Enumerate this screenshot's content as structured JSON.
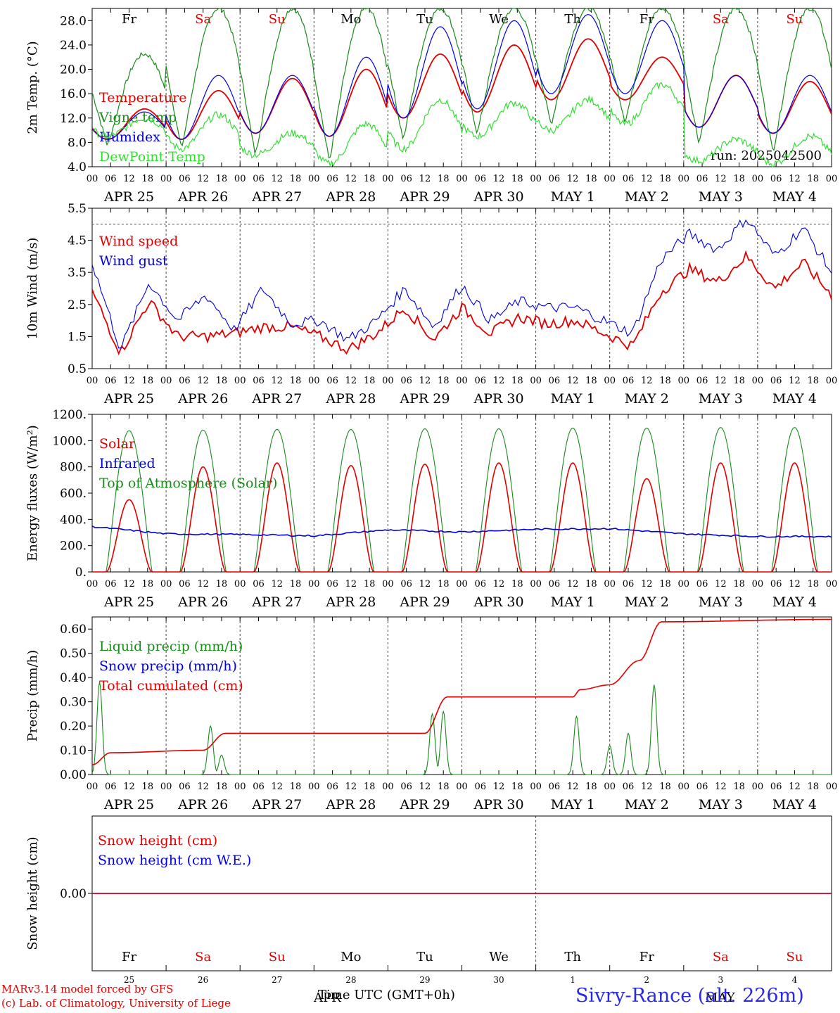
{
  "chart_data": {
    "type": "line",
    "days": [
      "Fr",
      "Sa",
      "Su",
      "Mo",
      "Tu",
      "We",
      "Th",
      "Fr",
      "Sa",
      "Su"
    ],
    "weekend_days": [
      "Sa",
      "Su"
    ],
    "date_labels": [
      "APR 25",
      "APR 26",
      "APR 27",
      "APR 28",
      "APR 29",
      "APR 30",
      "MAY  1",
      "MAY  2",
      "MAY  3",
      "MAY  4"
    ],
    "hour_ticks": [
      "00",
      "06",
      "12",
      "18"
    ],
    "day_numbers": [
      "25",
      "26",
      "27",
      "28",
      "29",
      "30",
      "1",
      "2",
      "3",
      "4"
    ],
    "month_labels": [
      "APR",
      "MAY"
    ],
    "panels": [
      {
        "ylabel": "2m Temp. (°C)",
        "ylim": [
          4,
          30
        ],
        "yticks": [
          "4.0",
          "8.0",
          "12.0",
          "16.0",
          "20.0",
          "24.0",
          "28.0"
        ],
        "annotation": "run: 2025042500",
        "series": [
          {
            "name": "Temperature",
            "color": "#e00000",
            "min": [
              8.5,
              8.5,
              9.5,
              9.0,
              12.0,
              13.0,
              15.0,
              15.0,
              10.5,
              9.5
            ],
            "max": [
              13.5,
              16.5,
              18.5,
              20.0,
              22.5,
              24.0,
              25.0,
              22.0,
              19.0,
              18.0
            ]
          },
          {
            "name": "Vigne temp",
            "color": "#1a8a1a",
            "min": [
              7.5,
              7.0,
              6.0,
              5.0,
              8.5,
              9.5,
              11.0,
              11.5,
              8.0,
              6.5
            ],
            "max": [
              22.5,
              30.0,
              30.0,
              30.0,
              30.0,
              30.0,
              30.0,
              30.0,
              30.0,
              30.0
            ]
          },
          {
            "name": "Humidex",
            "color": "#0000e0",
            "min": [
              8.5,
              8.5,
              9.5,
              9.0,
              12.0,
              13.5,
              16.0,
              16.0,
              10.5,
              9.5
            ],
            "max": [
              13.0,
              19.0,
              19.0,
              22.0,
              27.0,
              28.0,
              29.0,
              28.0,
              19.0,
              19.0
            ]
          },
          {
            "name": "DewPoint Temp",
            "color": "#33dd33",
            "min": [
              9.0,
              7.0,
              6.0,
              4.5,
              7.0,
              9.0,
              10.0,
              11.0,
              5.0,
              4.5
            ],
            "max": [
              12.0,
              12.5,
              9.5,
              11.0,
              15.0,
              14.5,
              15.0,
              17.5,
              8.5,
              9.0
            ]
          }
        ]
      },
      {
        "ylabel": "10m Wind (m/s)",
        "ylim": [
          0.5,
          5.5
        ],
        "yticks": [
          "0.5",
          "1.5",
          "2.5",
          "3.5",
          "4.5",
          "5.5"
        ],
        "reference_line": 5.0,
        "series": [
          {
            "name": "Wind speed",
            "color": "#e00000",
            "daily": [
              2.9,
              1.0,
              2.6,
              1.5,
              1.5,
              1.6,
              1.8,
              1.8,
              1.5,
              1.1,
              1.6,
              2.4,
              1.4,
              2.4,
              1.6,
              2.1,
              1.9,
              2.0,
              1.6,
              1.2,
              2.9,
              3.6,
              3.2,
              4.0,
              3.0,
              3.8,
              2.8
            ]
          },
          {
            "name": "Wind gust",
            "color": "#0000e0",
            "daily": [
              3.8,
              1.1,
              3.2,
              2.0,
              2.8,
              1.7,
              3.0,
              1.9,
              2.0,
              1.4,
              2.0,
              3.0,
              1.8,
              3.1,
              2.0,
              2.6,
              2.4,
              2.4,
              2.0,
              1.6,
              3.9,
              4.7,
              4.2,
              5.2,
              4.0,
              4.9,
              3.5
            ]
          }
        ]
      },
      {
        "ylabel": "Energy fluxes (W/m²)",
        "ylim": [
          0,
          1200
        ],
        "yticks": [
          "0.",
          "200.",
          "400.",
          "600.",
          "800.",
          "1000.",
          "1200."
        ],
        "series": [
          {
            "name": "Solar",
            "color": "#e00000",
            "daily_peak": [
              550,
              800,
              830,
              810,
              820,
              830,
              830,
              710,
              830,
              830
            ]
          },
          {
            "name": "Infrared",
            "color": "#0000e0",
            "level": [
              345,
              290,
              285,
              275,
              320,
              305,
              325,
              330,
              290,
              270
            ]
          },
          {
            "name": "Top of Atmosphere (Solar)",
            "color": "#1a8a1a",
            "daily_peak": [
              1075,
              1080,
              1085,
              1085,
              1090,
              1090,
              1095,
              1095,
              1100,
              1100
            ]
          }
        ]
      },
      {
        "ylabel": "Precip (mm/h)",
        "ylim": [
          0,
          0.65
        ],
        "yticks": [
          "0.00",
          "0.10",
          "0.20",
          "0.30",
          "0.40",
          "0.50",
          "0.60"
        ],
        "series": [
          {
            "name": "Liquid precip (mm/h)",
            "color": "#1a8a1a",
            "peaks": [
              [
                0.1,
                0.38
              ],
              [
                1.6,
                0.2
              ],
              [
                1.75,
                0.08
              ],
              [
                4.6,
                0.25
              ],
              [
                4.75,
                0.26
              ],
              [
                6.55,
                0.24
              ],
              [
                7.0,
                0.12
              ],
              [
                7.25,
                0.17
              ],
              [
                7.6,
                0.37
              ]
            ]
          },
          {
            "name": "Snow precip (mm/h)",
            "color": "#0000e0",
            "peaks": []
          },
          {
            "name": "Total cumulated (cm)",
            "color": "#e00000",
            "cumulative": [
              [
                0,
                0.04
              ],
              [
                0.25,
                0.09
              ],
              [
                1.5,
                0.1
              ],
              [
                1.8,
                0.17
              ],
              [
                4.5,
                0.17
              ],
              [
                4.8,
                0.32
              ],
              [
                6.5,
                0.32
              ],
              [
                6.6,
                0.35
              ],
              [
                7.0,
                0.37
              ],
              [
                7.4,
                0.47
              ],
              [
                7.7,
                0.63
              ],
              [
                10,
                0.64
              ]
            ]
          }
        ]
      },
      {
        "ylabel": "Snow height (cm)",
        "ylim": [
          -1,
          1
        ],
        "yticks": [
          "0.00"
        ],
        "series": [
          {
            "name": "Snow height (cm)",
            "color": "#e00000",
            "value": 0.0
          },
          {
            "name": "Snow height (cm W.E.)",
            "color": "#0000e0",
            "value": 0.0
          }
        ]
      }
    ],
    "xlabel": "Time UTC (GMT+0h)"
  },
  "footer": {
    "model": "MARv3.14 model forced by GFS",
    "copyright": "(c) Lab. of Climatology, University of Liege",
    "station": "Sivry-Rance (alt. 226m)"
  }
}
